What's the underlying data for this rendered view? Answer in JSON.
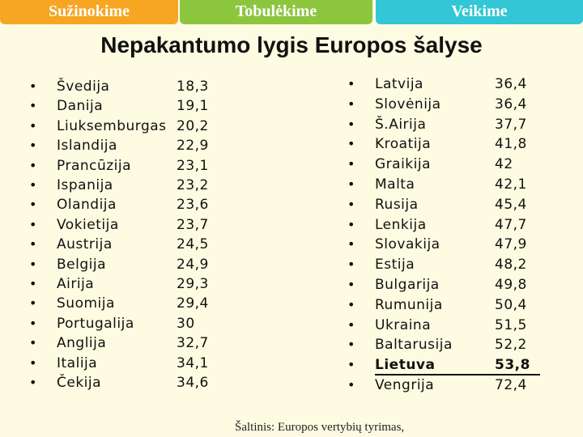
{
  "tabs": [
    "Sužinokime",
    "Tobulėkime",
    "Veikime"
  ],
  "title": "Nepakantumo lygis Europos šalyse",
  "lists": [
    {
      "items": [
        {
          "name": "Švedija",
          "value": "18,3"
        },
        {
          "name": "Danija",
          "value": "19,1"
        },
        {
          "name": "Liuksemburgas",
          "value": "20,2"
        },
        {
          "name": "Islandija",
          "value": "22,9"
        },
        {
          "name": "Prancūzija",
          "value": "23,1"
        },
        {
          "name": "Ispanija",
          "value": "23,2"
        },
        {
          "name": "Olandija",
          "value": "23,6"
        },
        {
          "name": "Vokietija",
          "value": "23,7"
        },
        {
          "name": "Austrija",
          "value": "24,5"
        },
        {
          "name": "Belgija",
          "value": "24,9"
        },
        {
          "name": "Airija",
          "value": "29,3"
        },
        {
          "name": "Suomija",
          "value": "29,4"
        },
        {
          "name": "Portugalija",
          "value": "30"
        },
        {
          "name": "Anglija",
          "value": "32,7"
        },
        {
          "name": "Italija",
          "value": "34,1"
        },
        {
          "name": "Čekija",
          "value": "34,6"
        }
      ]
    },
    {
      "items": [
        {
          "name": "Latvija",
          "value": "36,4"
        },
        {
          "name": "Slovėnija",
          "value": "36,4"
        },
        {
          "name": "Š.Airija",
          "value": "37,7"
        },
        {
          "name": "Kroatija",
          "value": "41,8"
        },
        {
          "name": "Graikija",
          "value": "42"
        },
        {
          "name": "Malta",
          "value": "42,1"
        },
        {
          "name": "Rusija",
          "value": "45,4"
        },
        {
          "name": "Lenkija",
          "value": "47,7"
        },
        {
          "name": "Slovakija",
          "value": "47,9"
        },
        {
          "name": "Estija",
          "value": "48,2"
        },
        {
          "name": "Bulgarija",
          "value": "49,8"
        },
        {
          "name": "Rumunija",
          "value": "50,4"
        },
        {
          "name": "Ukraina",
          "value": "51,5"
        },
        {
          "name": "Baltarusija",
          "value": "52,2"
        },
        {
          "name": "Lietuva",
          "value": "53,8",
          "emphasis": true
        },
        {
          "name": "Vengrija",
          "value": "72,4"
        }
      ]
    }
  ],
  "source": "Šaltinis: Europos vertybių tyrimas,"
}
